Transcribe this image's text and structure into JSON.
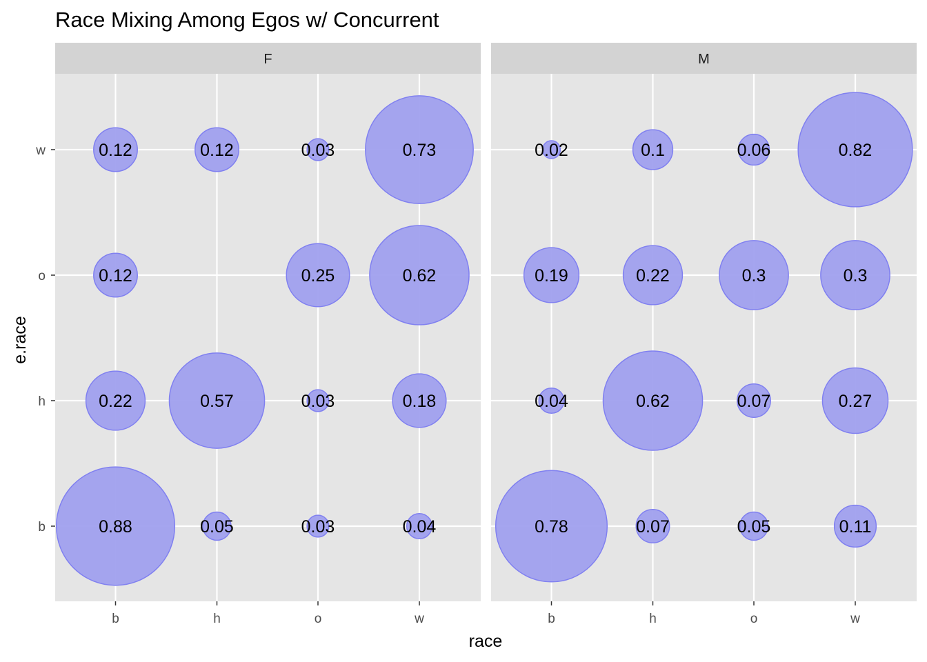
{
  "chart_data": {
    "type": "scatter",
    "title": "Race Mixing Among Egos w/ Concurrent",
    "xlabel": "race",
    "ylabel": "e.race",
    "x_categories": [
      "b",
      "h",
      "o",
      "w"
    ],
    "y_categories": [
      "b",
      "h",
      "o",
      "w"
    ],
    "facets": [
      {
        "name": "F",
        "points": [
          {
            "x": "b",
            "y": "w",
            "value": 0.12,
            "label": "0.12"
          },
          {
            "x": "h",
            "y": "w",
            "value": 0.12,
            "label": "0.12"
          },
          {
            "x": "o",
            "y": "w",
            "value": 0.03,
            "label": "0.03"
          },
          {
            "x": "w",
            "y": "w",
            "value": 0.73,
            "label": "0.73"
          },
          {
            "x": "b",
            "y": "o",
            "value": 0.12,
            "label": "0.12"
          },
          {
            "x": "o",
            "y": "o",
            "value": 0.25,
            "label": "0.25"
          },
          {
            "x": "w",
            "y": "o",
            "value": 0.62,
            "label": "0.62"
          },
          {
            "x": "b",
            "y": "h",
            "value": 0.22,
            "label": "0.22"
          },
          {
            "x": "h",
            "y": "h",
            "value": 0.57,
            "label": "0.57"
          },
          {
            "x": "o",
            "y": "h",
            "value": 0.03,
            "label": "0.03"
          },
          {
            "x": "w",
            "y": "h",
            "value": 0.18,
            "label": "0.18"
          },
          {
            "x": "b",
            "y": "b",
            "value": 0.88,
            "label": "0.88"
          },
          {
            "x": "h",
            "y": "b",
            "value": 0.05,
            "label": "0.05"
          },
          {
            "x": "o",
            "y": "b",
            "value": 0.03,
            "label": "0.03"
          },
          {
            "x": "w",
            "y": "b",
            "value": 0.04,
            "label": "0.04"
          }
        ]
      },
      {
        "name": "M",
        "points": [
          {
            "x": "b",
            "y": "w",
            "value": 0.02,
            "label": "0.02"
          },
          {
            "x": "h",
            "y": "w",
            "value": 0.1,
            "label": "0.1"
          },
          {
            "x": "o",
            "y": "w",
            "value": 0.06,
            "label": "0.06"
          },
          {
            "x": "w",
            "y": "w",
            "value": 0.82,
            "label": "0.82"
          },
          {
            "x": "b",
            "y": "o",
            "value": 0.19,
            "label": "0.19"
          },
          {
            "x": "h",
            "y": "o",
            "value": 0.22,
            "label": "0.22"
          },
          {
            "x": "o",
            "y": "o",
            "value": 0.3,
            "label": "0.3"
          },
          {
            "x": "w",
            "y": "o",
            "value": 0.3,
            "label": "0.3"
          },
          {
            "x": "b",
            "y": "h",
            "value": 0.04,
            "label": "0.04"
          },
          {
            "x": "h",
            "y": "h",
            "value": 0.62,
            "label": "0.62"
          },
          {
            "x": "o",
            "y": "h",
            "value": 0.07,
            "label": "0.07"
          },
          {
            "x": "w",
            "y": "h",
            "value": 0.27,
            "label": "0.27"
          },
          {
            "x": "b",
            "y": "b",
            "value": 0.78,
            "label": "0.78"
          },
          {
            "x": "h",
            "y": "b",
            "value": 0.07,
            "label": "0.07"
          },
          {
            "x": "o",
            "y": "b",
            "value": 0.05,
            "label": "0.05"
          },
          {
            "x": "w",
            "y": "b",
            "value": 0.11,
            "label": "0.11"
          }
        ]
      }
    ],
    "grid": true,
    "legend": "none",
    "colors": {
      "bubble_fill": "#a0a0ee",
      "bubble_stroke": "#8080f0",
      "panel_bg": "#e5e5e5",
      "strip_bg": "#d3d3d3",
      "grid": "#ffffff"
    }
  }
}
